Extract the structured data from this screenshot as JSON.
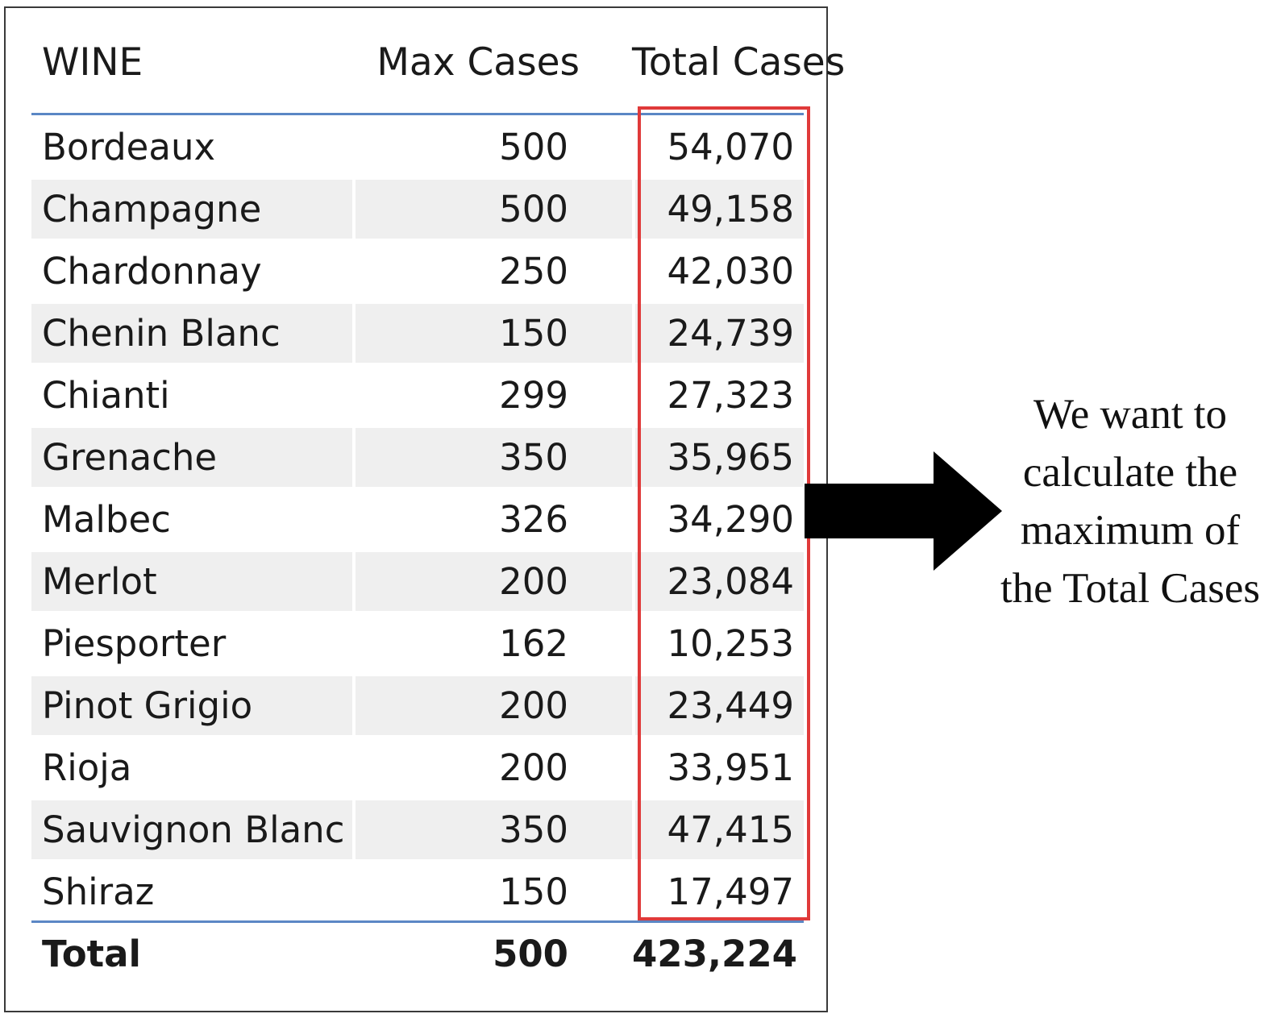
{
  "table": {
    "columns": [
      "WINE",
      "Max Cases",
      "Total Cases"
    ],
    "rows": [
      {
        "wine": "Bordeaux",
        "max_cases": "500",
        "total_cases": "54,070"
      },
      {
        "wine": "Champagne",
        "max_cases": "500",
        "total_cases": "49,158"
      },
      {
        "wine": "Chardonnay",
        "max_cases": "250",
        "total_cases": "42,030"
      },
      {
        "wine": "Chenin Blanc",
        "max_cases": "150",
        "total_cases": "24,739"
      },
      {
        "wine": "Chianti",
        "max_cases": "299",
        "total_cases": "27,323"
      },
      {
        "wine": "Grenache",
        "max_cases": "350",
        "total_cases": "35,965"
      },
      {
        "wine": "Malbec",
        "max_cases": "326",
        "total_cases": "34,290"
      },
      {
        "wine": "Merlot",
        "max_cases": "200",
        "total_cases": "23,084"
      },
      {
        "wine": "Piesporter",
        "max_cases": "162",
        "total_cases": "10,253"
      },
      {
        "wine": "Pinot Grigio",
        "max_cases": "200",
        "total_cases": "23,449"
      },
      {
        "wine": "Rioja",
        "max_cases": "200",
        "total_cases": "33,951"
      },
      {
        "wine": "Sauvignon Blanc",
        "max_cases": "350",
        "total_cases": "47,415"
      },
      {
        "wine": "Shiraz",
        "max_cases": "150",
        "total_cases": "17,497"
      }
    ],
    "total": {
      "label": "Total",
      "max_cases": "500",
      "total_cases": "423,224"
    }
  },
  "annotation": {
    "lines": [
      "We want to",
      "calculate the",
      "maximum of",
      "the Total Cases"
    ],
    "highlight_color": "#e03a3a",
    "arrow_icon": "right-arrow-icon"
  },
  "colors": {
    "stripe": "#efefef",
    "divider": "#5b87c5",
    "border": "#3a3a3a"
  }
}
